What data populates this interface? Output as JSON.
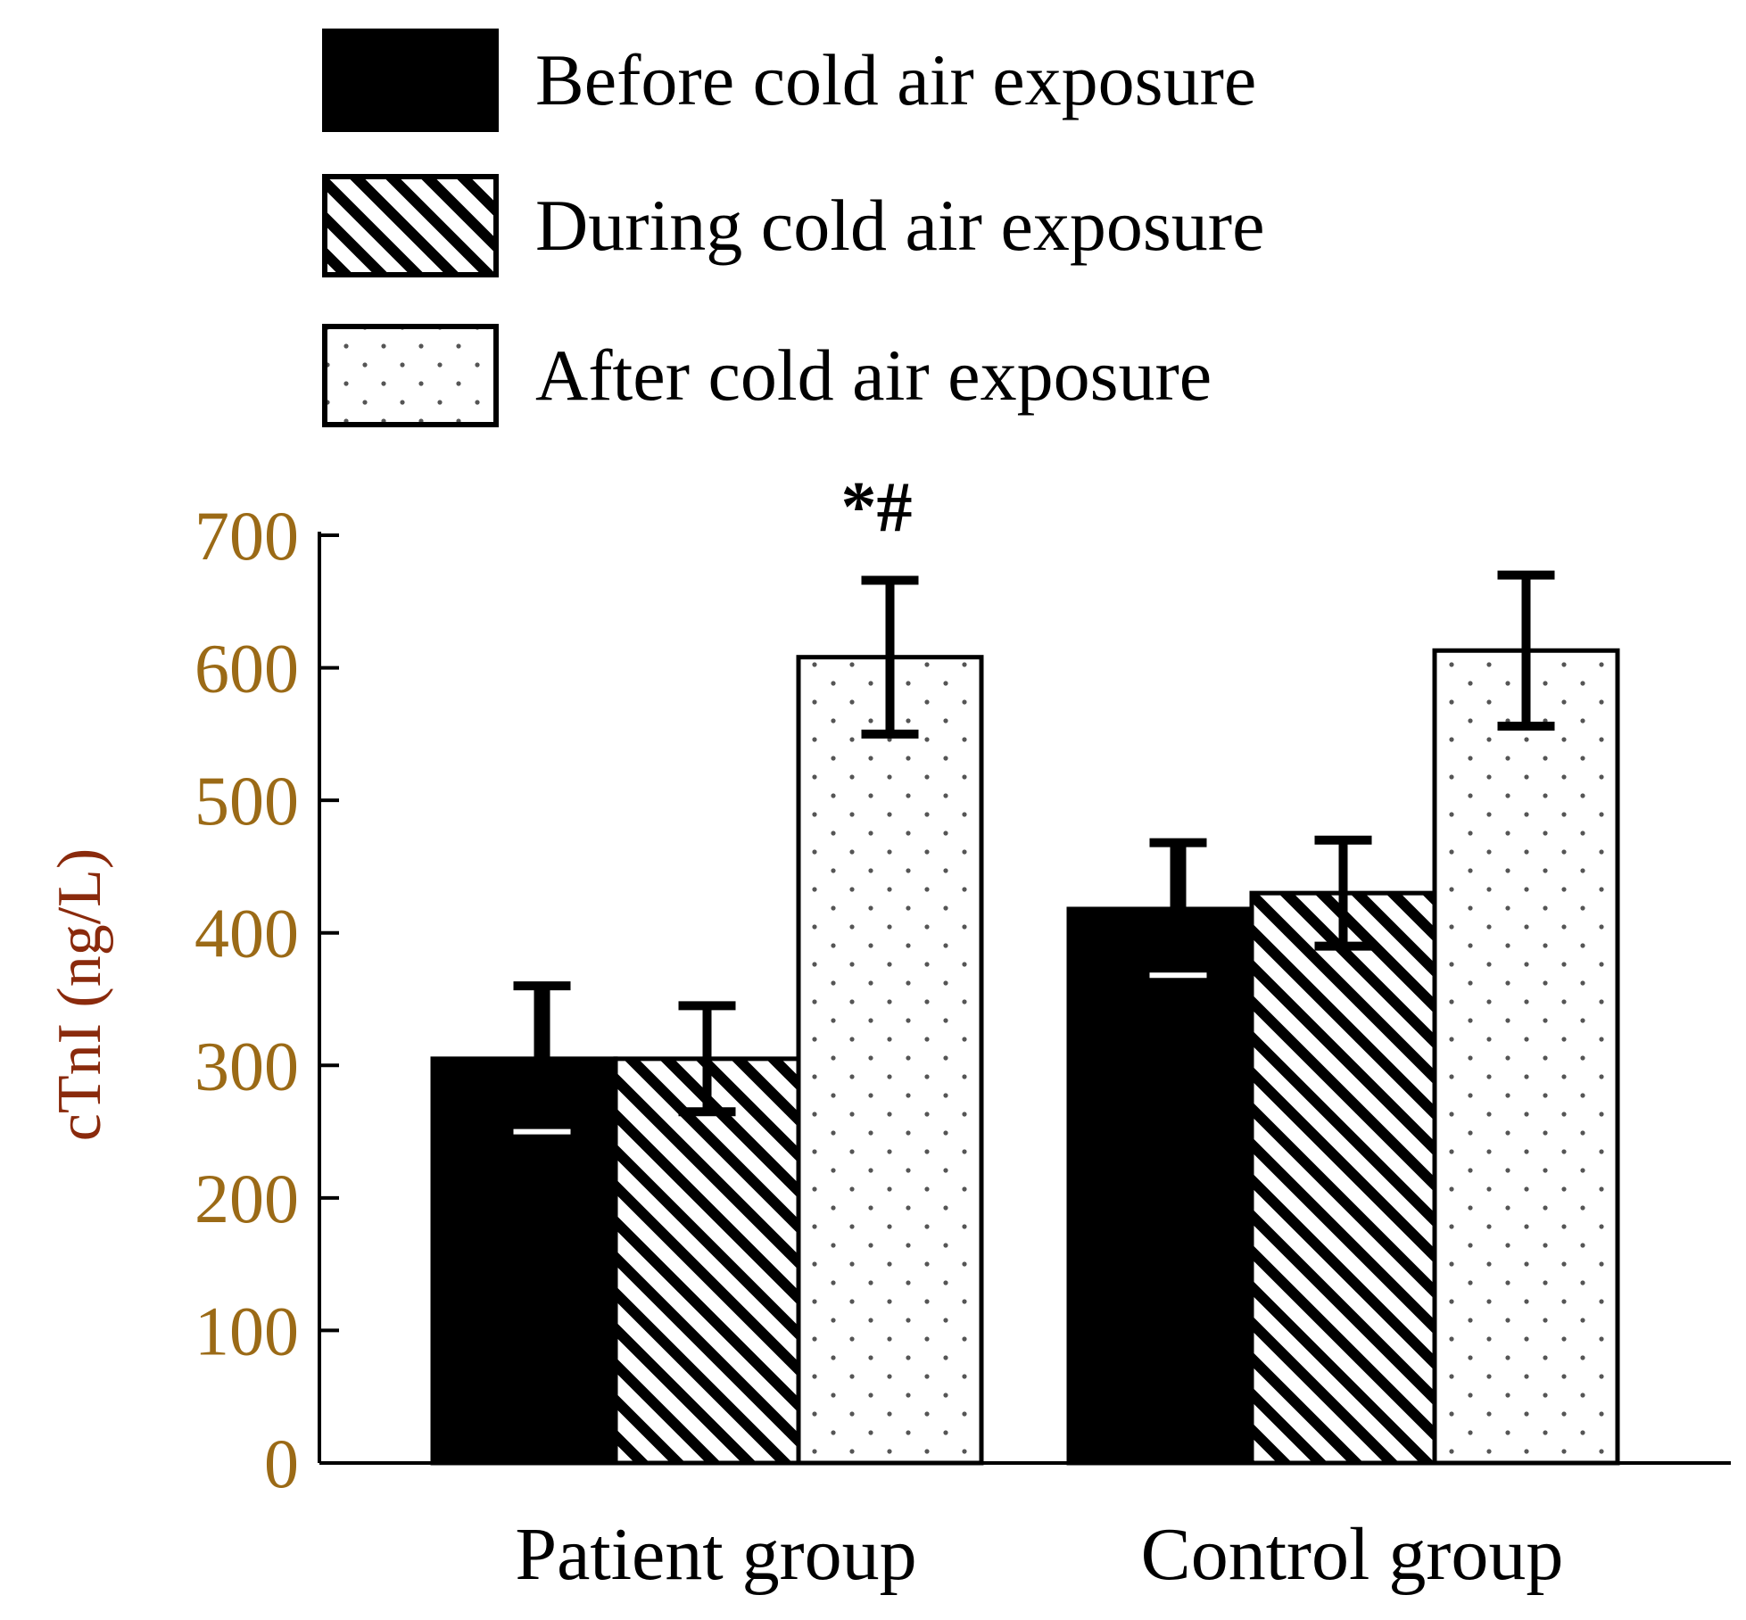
{
  "chart_data": {
    "type": "bar",
    "title": "",
    "xlabel": "",
    "ylabel": "cTnI (ng/L)",
    "ylim": [
      0,
      700
    ],
    "yticks": [
      0,
      100,
      200,
      300,
      400,
      500,
      600,
      700
    ],
    "categories": [
      "Patient group",
      "Control group"
    ],
    "series": [
      {
        "name": "Before cold air exposure",
        "pattern": "solid",
        "values": [
          305,
          418
        ],
        "errors": [
          55,
          50
        ]
      },
      {
        "name": "During cold air exposure",
        "pattern": "diagonal-hatch",
        "values": [
          305,
          430
        ],
        "errors": [
          40,
          40
        ]
      },
      {
        "name": "After cold air exposure",
        "pattern": "dots",
        "values": [
          608,
          613
        ],
        "errors": [
          58,
          57
        ]
      }
    ],
    "annotations": [
      {
        "category": "Patient group",
        "series": "After cold air exposure",
        "text": "*#"
      }
    ],
    "legend_position": "top",
    "grid": false
  },
  "colors": {
    "axis_tick_text": "#9b6a16",
    "y_label_text": "#8a2a0c",
    "bar_edge": "#000000",
    "dot_color": "#555555"
  }
}
